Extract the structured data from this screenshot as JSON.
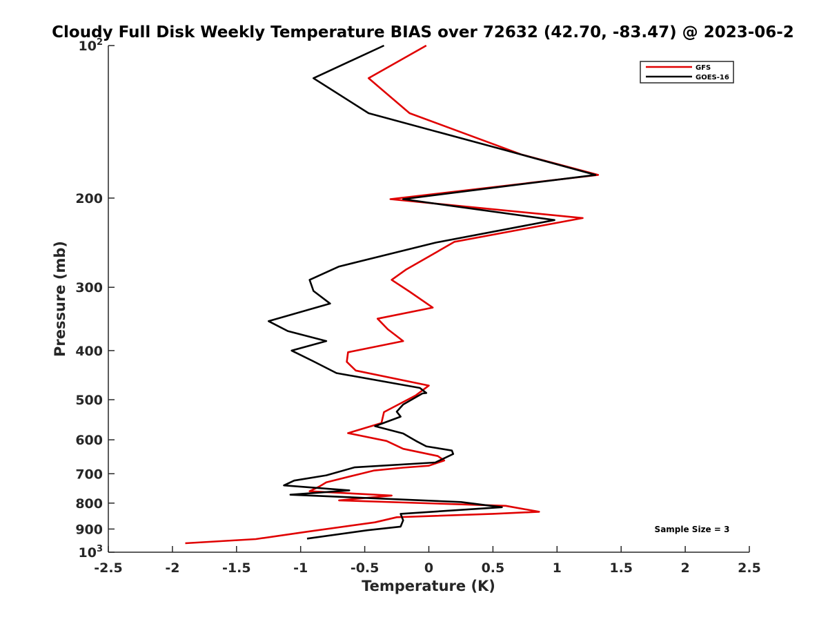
{
  "chart_data": {
    "type": "line",
    "title": "Cloudy Full Disk Weekly Temperature BIAS over 72632 (42.70, -83.47) @ 2023-06-2",
    "xlabel": "Temperature (K)",
    "ylabel": "Pressure (mb)",
    "xlim": [
      -2.5,
      2.5
    ],
    "ylim": [
      100,
      1000
    ],
    "yscale": "log",
    "y_reversed": true,
    "x_ticks": [
      "-2.5",
      "-2",
      "-1.5",
      "-1",
      "-0.5",
      "0",
      "0.5",
      "1",
      "1.5",
      "2",
      "2.5"
    ],
    "x_tick_values": [
      -2.5,
      -2,
      -1.5,
      -1,
      -0.5,
      0,
      0.5,
      1,
      1.5,
      2,
      2.5
    ],
    "y_ticks": [
      {
        "value": 100,
        "label": "10",
        "sup": "2"
      },
      {
        "value": 200,
        "label": "200",
        "sup": ""
      },
      {
        "value": 300,
        "label": "300",
        "sup": ""
      },
      {
        "value": 400,
        "label": "400",
        "sup": ""
      },
      {
        "value": 500,
        "label": "500",
        "sup": ""
      },
      {
        "value": 600,
        "label": "600",
        "sup": ""
      },
      {
        "value": 700,
        "label": "700",
        "sup": ""
      },
      {
        "value": 800,
        "label": "800",
        "sup": ""
      },
      {
        "value": 900,
        "label": "900",
        "sup": ""
      },
      {
        "value": 1000,
        "label": "10",
        "sup": "3"
      }
    ],
    "grid": false,
    "legend_position": "top-right",
    "annotation": "Sample Size = 3",
    "series": [
      {
        "name": "GFS",
        "color": "#e00000",
        "points": [
          [
            -0.02,
            100
          ],
          [
            -0.47,
            116
          ],
          [
            -0.15,
            136
          ],
          [
            0.72,
            164
          ],
          [
            1.32,
            180
          ],
          [
            -0.3,
            201
          ],
          [
            1.2,
            219
          ],
          [
            0.2,
            244
          ],
          [
            -0.18,
            277
          ],
          [
            -0.29,
            290
          ],
          [
            -0.15,
            306
          ],
          [
            0.03,
            329
          ],
          [
            -0.4,
            346
          ],
          [
            -0.32,
            363
          ],
          [
            -0.2,
            383
          ],
          [
            -0.63,
            403
          ],
          [
            -0.64,
            421
          ],
          [
            -0.57,
            438
          ],
          [
            0.0,
            469
          ],
          [
            -0.1,
            490
          ],
          [
            -0.35,
            529
          ],
          [
            -0.37,
            556
          ],
          [
            -0.63,
            582
          ],
          [
            -0.33,
            603
          ],
          [
            -0.2,
            625
          ],
          [
            0.07,
            646
          ],
          [
            0.12,
            659
          ],
          [
            0.0,
            675
          ],
          [
            -0.2,
            681
          ],
          [
            -0.43,
            690
          ],
          [
            -0.55,
            702
          ],
          [
            -0.8,
            728
          ],
          [
            -0.85,
            741
          ],
          [
            -0.93,
            758
          ],
          [
            -0.29,
            773
          ],
          [
            -0.7,
            790
          ],
          [
            0.6,
            810
          ],
          [
            0.86,
            832
          ],
          [
            0.5,
            840
          ],
          [
            -0.25,
            853
          ],
          [
            -0.42,
            873
          ],
          [
            -0.95,
            911
          ],
          [
            -1.35,
            942
          ],
          [
            -1.9,
            960
          ]
        ]
      },
      {
        "name": "GOES-16",
        "color": "#000000",
        "points": [
          [
            -0.35,
            100
          ],
          [
            -0.9,
            116
          ],
          [
            -0.47,
            136
          ],
          [
            0.6,
            161
          ],
          [
            1.3,
            180
          ],
          [
            -0.2,
            201
          ],
          [
            0.98,
            221
          ],
          [
            0.05,
            245
          ],
          [
            -0.7,
            273
          ],
          [
            -0.93,
            290
          ],
          [
            -0.9,
            305
          ],
          [
            -0.77,
            323
          ],
          [
            -1.25,
            350
          ],
          [
            -1.1,
            366
          ],
          [
            -0.8,
            383
          ],
          [
            -1.07,
            400
          ],
          [
            -0.9,
            420
          ],
          [
            -0.72,
            443
          ],
          [
            -0.07,
            474
          ],
          [
            -0.02,
            485
          ],
          [
            -0.05,
            486
          ],
          [
            -0.2,
            511
          ],
          [
            -0.25,
            528
          ],
          [
            -0.22,
            540
          ],
          [
            -0.42,
            564
          ],
          [
            -0.2,
            583
          ],
          [
            -0.1,
            603
          ],
          [
            -0.02,
            618
          ],
          [
            0.18,
            630
          ],
          [
            0.19,
            640
          ],
          [
            0.05,
            665
          ],
          [
            -0.58,
            680
          ],
          [
            -0.8,
            705
          ],
          [
            -1.05,
            722
          ],
          [
            -1.13,
            738
          ],
          [
            -0.62,
            755
          ],
          [
            -1.08,
            770
          ],
          [
            0.25,
            796
          ],
          [
            0.57,
            815
          ],
          [
            -0.22,
            840
          ],
          [
            -0.2,
            865
          ],
          [
            -0.22,
            890
          ],
          [
            -0.48,
            905
          ],
          [
            -0.95,
            940
          ]
        ]
      }
    ]
  }
}
